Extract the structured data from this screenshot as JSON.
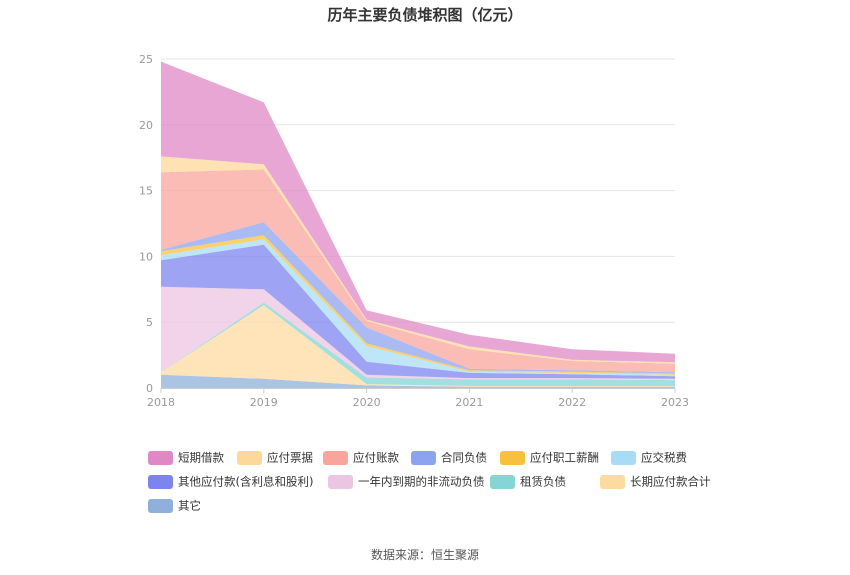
{
  "title": "历年主要负债堆积图（亿元）",
  "source": "数据来源：恒生聚源",
  "chart_data": {
    "type": "area",
    "stacked": true,
    "x": [
      "2018",
      "2019",
      "2020",
      "2021",
      "2022",
      "2023"
    ],
    "ylim": [
      0,
      25
    ],
    "yticks": [
      0,
      5,
      10,
      15,
      20,
      25
    ],
    "grid": true,
    "legend_position": "bottom",
    "series": [
      {
        "name": "其它",
        "color": "#8fb0db",
        "values": [
          1.0,
          0.7,
          0.2,
          0.1,
          0.1,
          0.1
        ]
      },
      {
        "name": "长期应付款合计",
        "color": "#fddba0",
        "values": [
          0.2,
          5.6,
          0.1,
          0.05,
          0.05,
          0.05
        ]
      },
      {
        "name": "租赁负债",
        "color": "#86d4d4",
        "values": [
          0.0,
          0.2,
          0.5,
          0.5,
          0.5,
          0.45
        ]
      },
      {
        "name": "一年内到期的非流动负债",
        "color": "#ecc5e2",
        "values": [
          6.5,
          1.0,
          0.2,
          0.1,
          0.1,
          0.1
        ]
      },
      {
        "name": "其他应付款(含利息和股利)",
        "color": "#7e84ef",
        "values": [
          2.0,
          3.4,
          1.0,
          0.4,
          0.3,
          0.2
        ]
      },
      {
        "name": "应交税费",
        "color": "#a8dcf6",
        "values": [
          0.4,
          0.4,
          1.2,
          0.1,
          0.1,
          0.1
        ]
      },
      {
        "name": "应付职工薪酬",
        "color": "#f8c13b",
        "values": [
          0.3,
          0.3,
          0.2,
          0.1,
          0.1,
          0.1
        ]
      },
      {
        "name": "合同负债",
        "color": "#8ca3f0",
        "values": [
          0.1,
          1.0,
          1.2,
          0.1,
          0.1,
          0.1
        ]
      },
      {
        "name": "应付账款",
        "color": "#f9a59c",
        "values": [
          5.9,
          4.0,
          0.5,
          1.5,
          0.7,
          0.65
        ]
      },
      {
        "name": "应付票据",
        "color": "#fdd89b",
        "values": [
          1.2,
          0.4,
          0.1,
          0.2,
          0.1,
          0.1
        ]
      },
      {
        "name": "短期借款",
        "color": "#df88c4",
        "values": [
          7.2,
          4.7,
          0.7,
          0.9,
          0.8,
          0.65
        ]
      }
    ]
  },
  "legend_order": [
    "短期借款",
    "应付票据",
    "应付账款",
    "合同负债",
    "应付职工薪酬",
    "应交税费",
    "其他应付款(含利息和股利)",
    "一年内到期的非流动负债",
    "租赁负债",
    "长期应付款合计",
    "其它"
  ]
}
